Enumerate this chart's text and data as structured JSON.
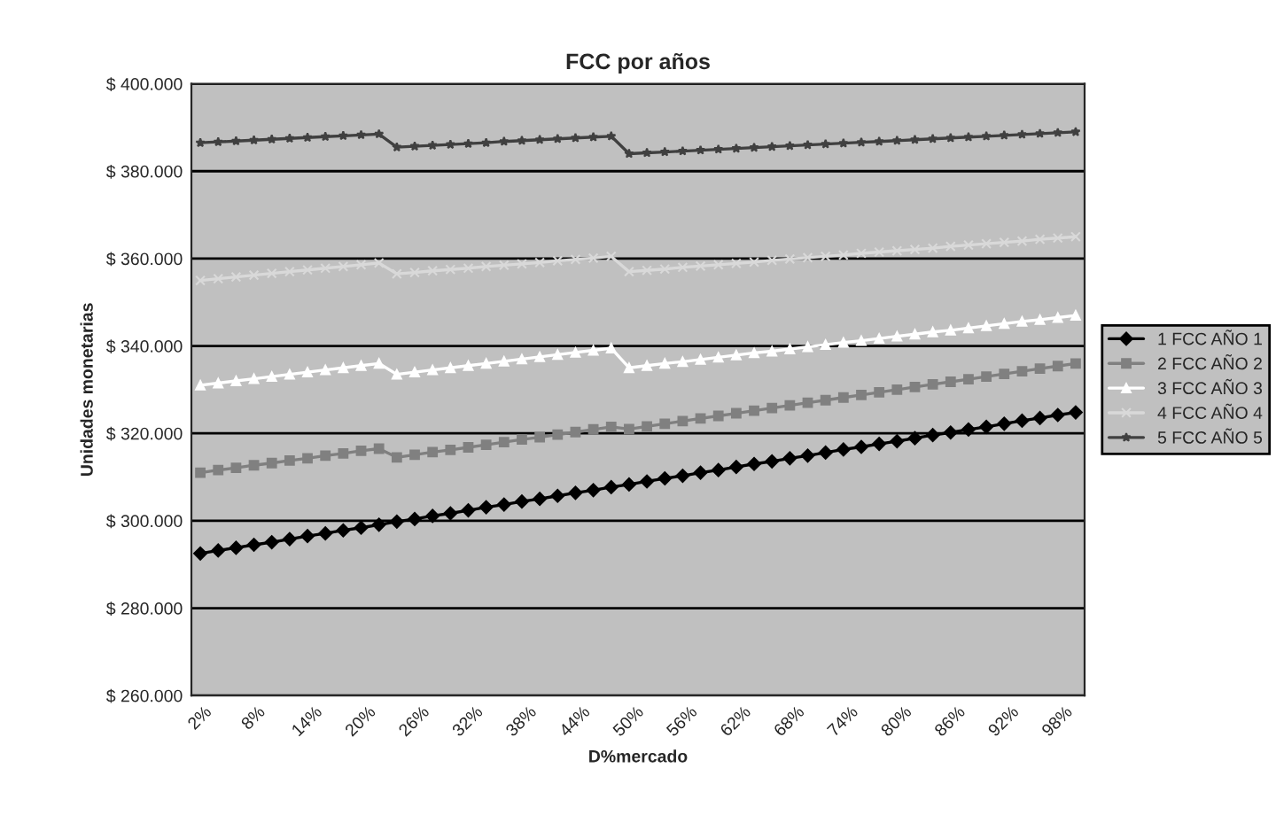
{
  "chart_data": {
    "type": "line",
    "title": "FCC por años",
    "xlabel": "D%mercado",
    "ylabel": "Unidades monetarias",
    "categories": [
      "2%",
      null,
      null,
      "8%",
      null,
      null,
      "14%",
      null,
      null,
      "20%",
      null,
      null,
      "26%",
      null,
      null,
      "32%",
      null,
      null,
      "38%",
      null,
      null,
      "44%",
      null,
      null,
      "50%",
      null,
      null,
      "56%",
      null,
      null,
      "62%",
      null,
      null,
      "68%",
      null,
      null,
      "74%",
      null,
      null,
      "80%",
      null,
      null,
      "86%",
      null,
      null,
      "92%",
      null,
      null,
      "98%",
      null
    ],
    "series": [
      {
        "name": "1 FCC AÑO 1",
        "color": "#000000",
        "marker": "diamond",
        "values": [
          292500,
          293200,
          293800,
          294500,
          295100,
          295800,
          296500,
          297100,
          297800,
          298400,
          299100,
          299800,
          300400,
          301100,
          301700,
          302400,
          303100,
          303700,
          304400,
          305000,
          305700,
          306400,
          307000,
          307700,
          308300,
          309000,
          309700,
          310300,
          311000,
          311600,
          312300,
          313000,
          313600,
          314300,
          314900,
          315600,
          316300,
          316900,
          317600,
          318200,
          318900,
          319600,
          320200,
          320900,
          321500,
          322200,
          322900,
          323500,
          324200,
          324800
        ]
      },
      {
        "name": "2 FCC AÑO 2",
        "color": "#808080",
        "marker": "square",
        "values": [
          311000,
          311600,
          312100,
          312700,
          313200,
          313800,
          314300,
          314900,
          315400,
          316000,
          316500,
          314500,
          315100,
          315700,
          316200,
          316800,
          317400,
          318000,
          318600,
          319100,
          319700,
          320300,
          320900,
          321500,
          321000,
          321600,
          322200,
          322800,
          323400,
          324000,
          324600,
          325200,
          325800,
          326400,
          327000,
          327600,
          328200,
          328800,
          329400,
          330000,
          330600,
          331200,
          331800,
          332400,
          333000,
          333600,
          334200,
          334800,
          335400,
          336000
        ]
      },
      {
        "name": "3 FCC AÑO 3",
        "color": "#ffffff",
        "marker": "triangle",
        "values": [
          331000,
          331500,
          332000,
          332500,
          333000,
          333500,
          334000,
          334500,
          335000,
          335500,
          336000,
          333500,
          334000,
          334500,
          335000,
          335500,
          336000,
          336500,
          337000,
          337500,
          338000,
          338500,
          339000,
          339500,
          335000,
          335500,
          336000,
          336400,
          336900,
          337400,
          337900,
          338400,
          338800,
          339300,
          339800,
          340300,
          340800,
          341200,
          341700,
          342200,
          342700,
          343200,
          343600,
          344100,
          344600,
          345100,
          345600,
          346000,
          346500,
          347000
        ]
      },
      {
        "name": "4 FCC AÑO 4",
        "color": "#d9d9d9",
        "marker": "cross",
        "values": [
          355000,
          355400,
          355800,
          356200,
          356600,
          357000,
          357400,
          357800,
          358200,
          358600,
          359000,
          356500,
          356800,
          357200,
          357500,
          357800,
          358200,
          358500,
          358800,
          359100,
          359500,
          359800,
          360100,
          360500,
          357000,
          357300,
          357600,
          358000,
          358300,
          358600,
          358900,
          359200,
          359600,
          359900,
          360200,
          360500,
          360800,
          361200,
          361500,
          361800,
          362100,
          362400,
          362800,
          363100,
          363400,
          363700,
          364000,
          364400,
          364700,
          365000
        ]
      },
      {
        "name": "5 FCC AÑO 5",
        "color": "#404040",
        "marker": "star",
        "values": [
          386500,
          386700,
          386900,
          387100,
          387300,
          387500,
          387700,
          387900,
          388100,
          388300,
          388500,
          385500,
          385700,
          385900,
          386100,
          386300,
          386500,
          386800,
          387000,
          387200,
          387400,
          387600,
          387800,
          388000,
          384000,
          384200,
          384400,
          384600,
          384800,
          385000,
          385200,
          385400,
          385600,
          385800,
          386000,
          386200,
          386400,
          386600,
          386800,
          387000,
          387200,
          387400,
          387600,
          387800,
          388000,
          388200,
          388400,
          388600,
          388800,
          389000
        ]
      }
    ],
    "ylim": [
      260000,
      400000
    ],
    "yticks": [
      {
        "value": 260000,
        "label": "$ 260.000"
      },
      {
        "value": 280000,
        "label": "$ 280.000"
      },
      {
        "value": 300000,
        "label": "$ 300.000"
      },
      {
        "value": 320000,
        "label": "$ 320.000"
      },
      {
        "value": 340000,
        "label": "$ 340.000"
      },
      {
        "value": 360000,
        "label": "$ 360.000"
      },
      {
        "value": 380000,
        "label": "$ 380.000"
      },
      {
        "value": 400000,
        "label": "$ 400.000"
      }
    ],
    "grid": "y",
    "legend": "right",
    "line_style": "solid"
  }
}
